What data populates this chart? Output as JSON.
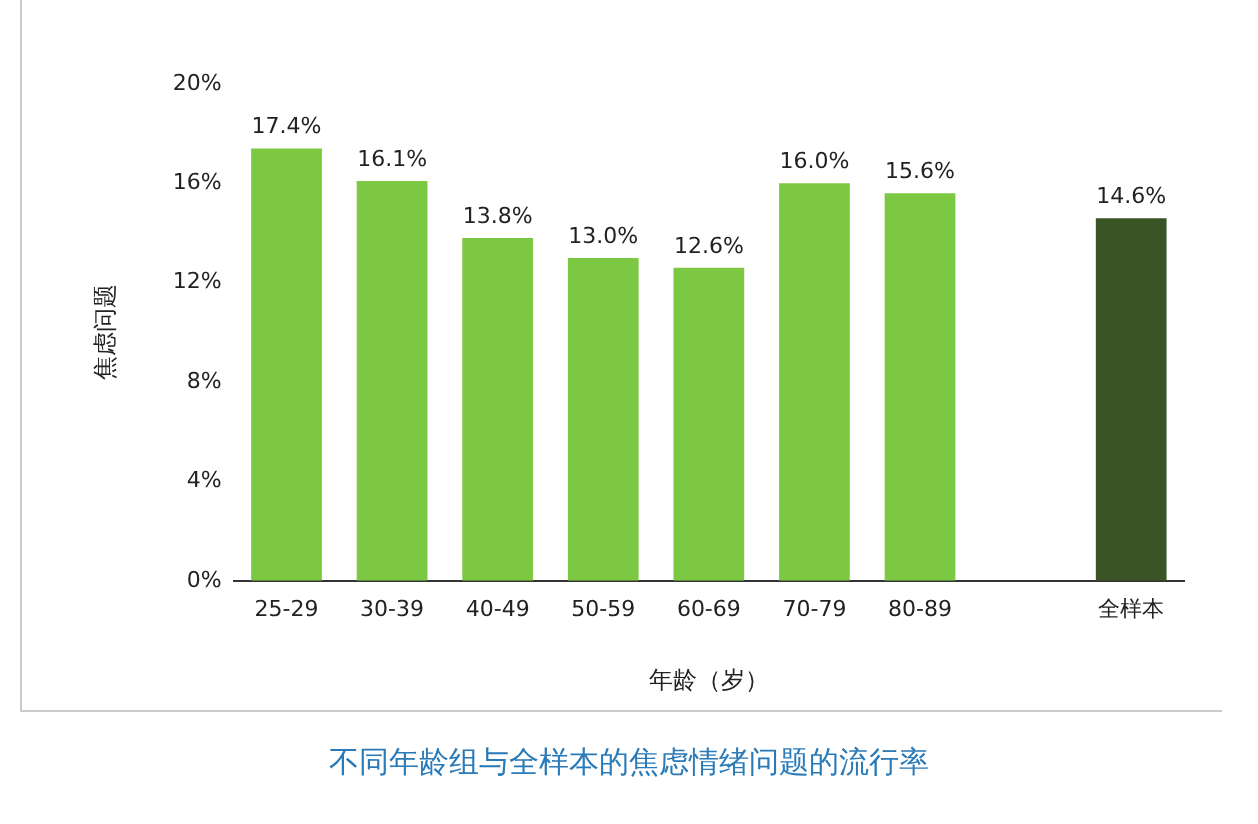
{
  "chart_data": {
    "type": "bar",
    "title": "不同年龄组与全样本的焦虑情绪问题的流行率",
    "xlabel": "年龄（岁）",
    "ylabel": "焦虑问题",
    "categories": [
      "25-29",
      "30-39",
      "40-49",
      "50-59",
      "60-69",
      "70-79",
      "80-89",
      null,
      "全样本"
    ],
    "values": [
      17.4,
      16.1,
      13.8,
      13.0,
      12.6,
      16.0,
      15.6,
      null,
      14.6
    ],
    "colors": [
      "#7dc843",
      "#7dc843",
      "#7dc843",
      "#7dc843",
      "#7dc843",
      "#7dc843",
      "#7dc843",
      "#7dc843",
      "#3a5426"
    ],
    "value_labels": [
      "17.4%",
      "16.1%",
      "13.8%",
      "13.0%",
      "12.6%",
      "16.0%",
      "15.6%",
      null,
      "14.6%"
    ],
    "ylim": [
      0,
      20
    ],
    "yticks": [
      {
        "value": 0,
        "label": "0%"
      },
      {
        "value": 4,
        "label": "4%"
      },
      {
        "value": 8,
        "label": "8%"
      },
      {
        "value": 12,
        "label": "12%"
      },
      {
        "value": 16,
        "label": "16%"
      },
      {
        "value": 20,
        "label": "20%"
      }
    ],
    "grid": false
  }
}
